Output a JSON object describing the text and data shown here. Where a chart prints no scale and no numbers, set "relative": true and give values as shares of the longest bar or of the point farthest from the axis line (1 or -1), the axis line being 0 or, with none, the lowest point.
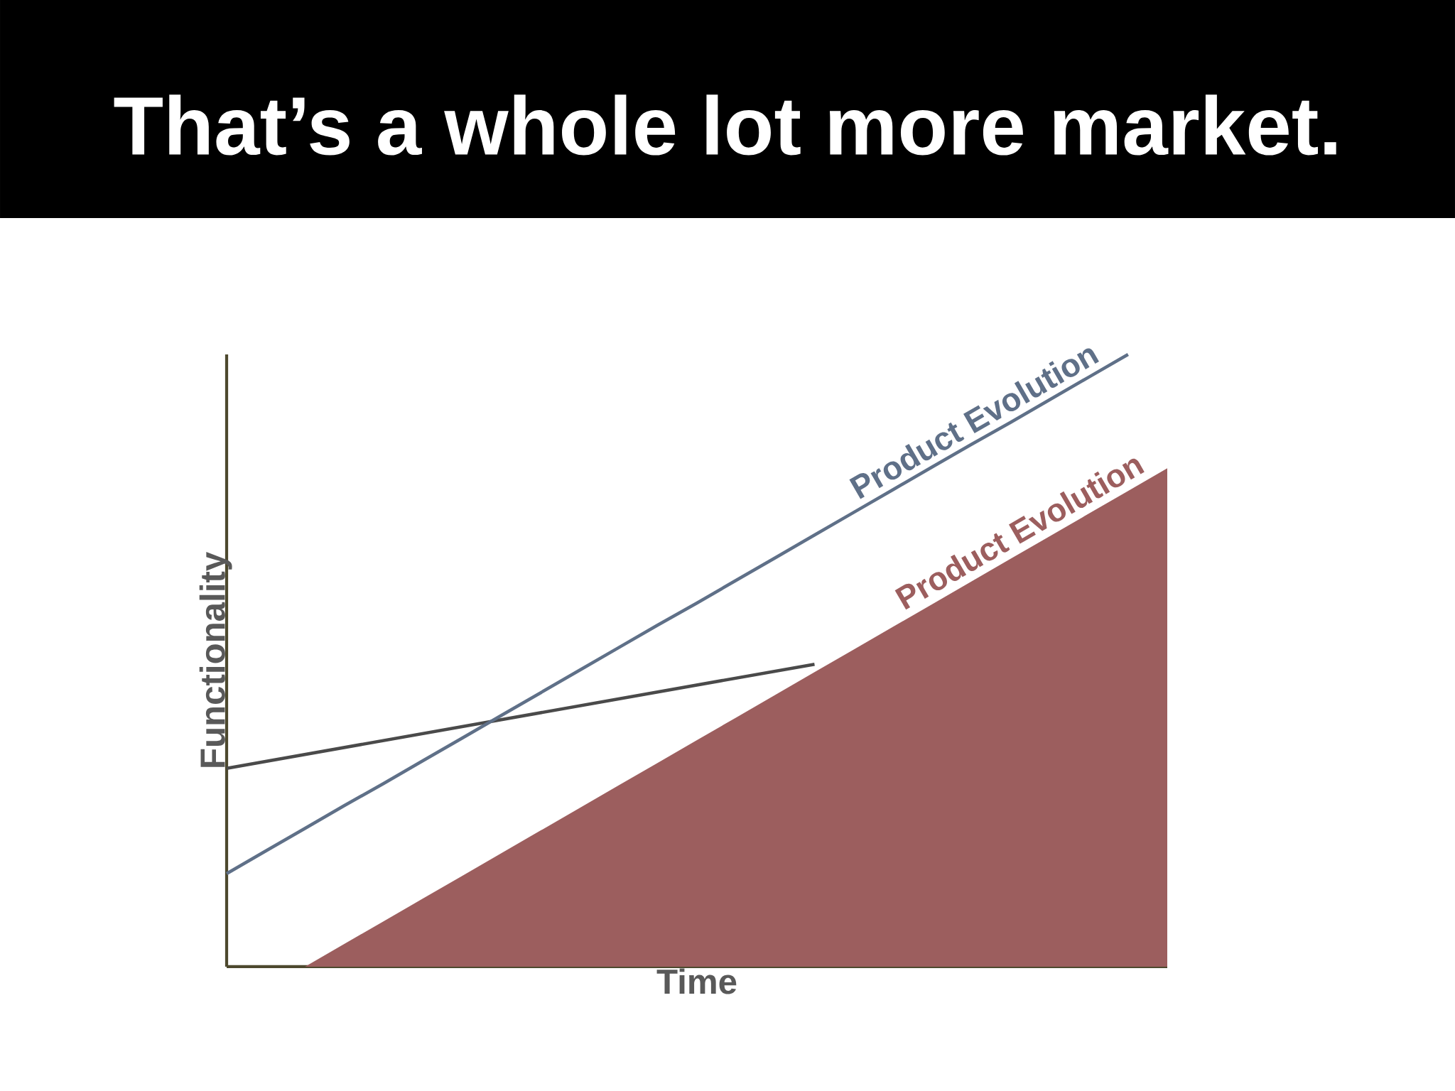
{
  "chart_data": {
    "type": "line",
    "title": "That’s a whole lot more market.",
    "xlabel": "Time",
    "ylabel": "Functionality",
    "relative": true,
    "categories": [
      null,
      null,
      null,
      null,
      null,
      null,
      null,
      null,
      null,
      null,
      null,
      null,
      null,
      null,
      null,
      null,
      null,
      null,
      null,
      null,
      null,
      null,
      null,
      null,
      null
    ],
    "series": [
      {
        "color": "#4a4a4a",
        "values": [
          0.324,
          null,
          null,
          null,
          null,
          null,
          null,
          null,
          null,
          null,
          null,
          null,
          null,
          null,
          null,
          0.494,
          null,
          null,
          null,
          null,
          null,
          null,
          null,
          null,
          null
        ]
      },
      {
        "name": "Product Evolution",
        "color": "#5f7088",
        "values": [
          0.152,
          0.189,
          0.226,
          0.263,
          0.299,
          0.336,
          0.373,
          0.41,
          0.447,
          0.484,
          0.521,
          0.558,
          0.594,
          0.631,
          0.668,
          0.705,
          0.742,
          0.779,
          0.816,
          0.853,
          0.889,
          0.926,
          0.963,
          1.0,
          null
        ]
      },
      {
        "name": "Product Evolution",
        "type": "area",
        "color": "#9c5e5e",
        "values": [
          null,
          null,
          0,
          0.037,
          0.074,
          0.111,
          0.148,
          0.185,
          0.222,
          0.259,
          0.296,
          0.333,
          0.37,
          0.407,
          0.444,
          0.481,
          0.518,
          0.555,
          0.592,
          0.629,
          0.666,
          0.703,
          0.74,
          0.777,
          0.814
        ]
      }
    ]
  }
}
